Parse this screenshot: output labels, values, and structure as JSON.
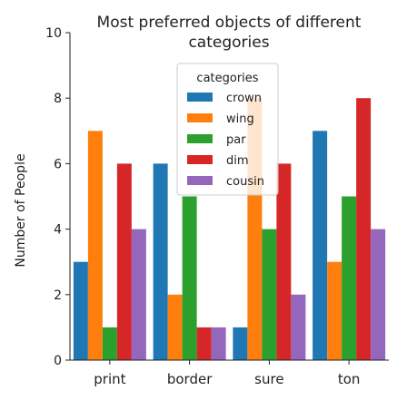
{
  "chart_data": {
    "type": "bar",
    "title_lines": [
      "Most preferred objects of different",
      "categories"
    ],
    "xlabel": "",
    "ylabel": "Number of People",
    "categories": [
      "print",
      "border",
      "sure",
      "ton"
    ],
    "ylim": [
      0,
      10
    ],
    "yticks": [
      0,
      2,
      4,
      6,
      8,
      10
    ],
    "grid": false,
    "legend": {
      "title": "categories",
      "placement": "top-center"
    },
    "series": [
      {
        "name": "crown",
        "color": "#1f77b4",
        "values": [
          3,
          6,
          1,
          7
        ]
      },
      {
        "name": "wing",
        "color": "#ff7f0e",
        "values": [
          7,
          2,
          8,
          3
        ]
      },
      {
        "name": "par",
        "color": "#2ca02c",
        "values": [
          1,
          5,
          4,
          5
        ]
      },
      {
        "name": "dim",
        "color": "#d62728",
        "values": [
          6,
          1,
          6,
          8
        ]
      },
      {
        "name": "cousin",
        "color": "#9467bd",
        "values": [
          4,
          1,
          2,
          4
        ]
      }
    ]
  }
}
